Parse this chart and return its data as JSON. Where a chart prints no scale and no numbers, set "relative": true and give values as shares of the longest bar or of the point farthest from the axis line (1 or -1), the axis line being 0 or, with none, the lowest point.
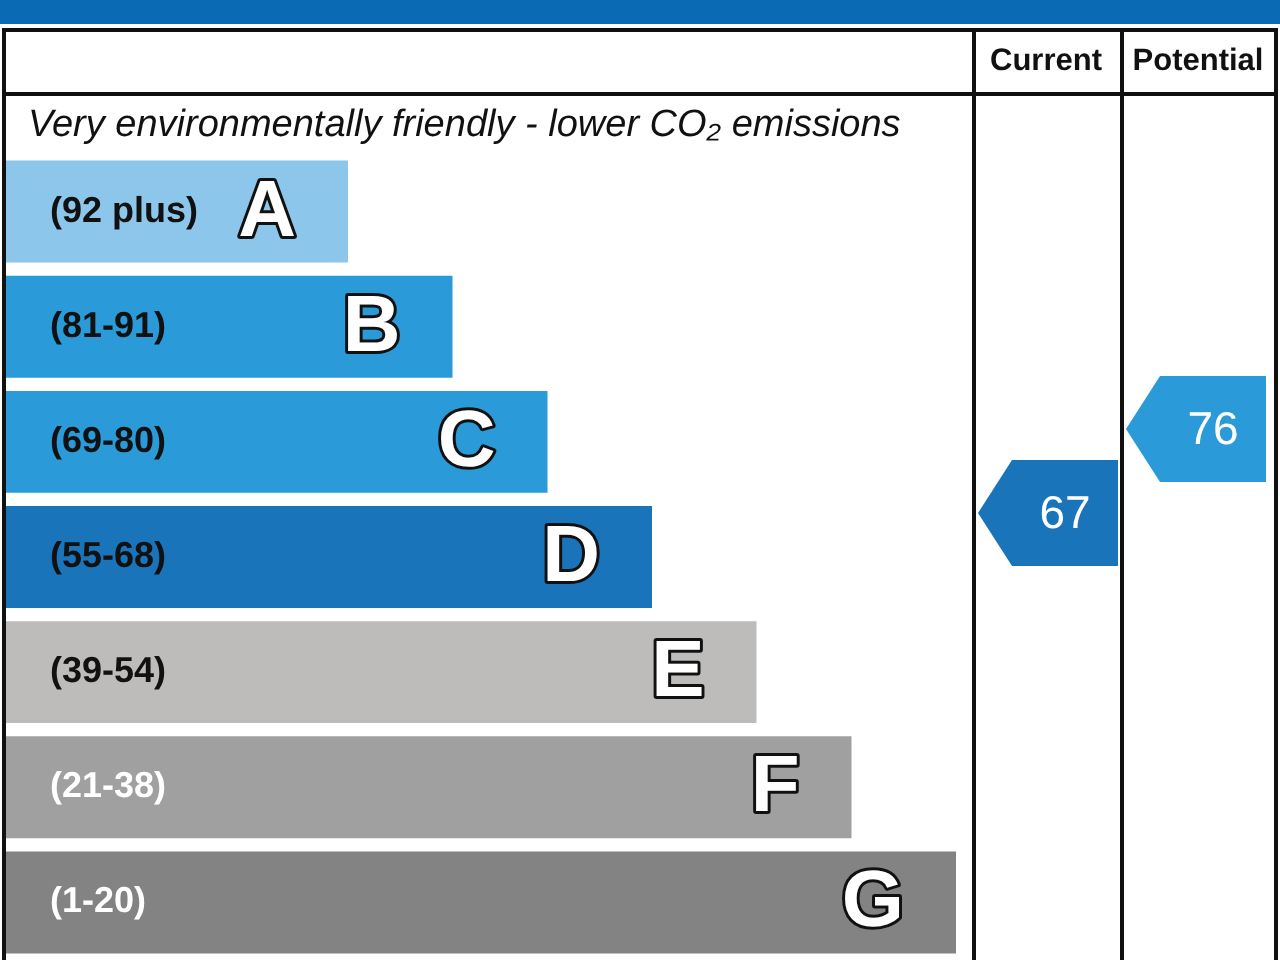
{
  "chart_data": {
    "type": "bar",
    "orientation": "horizontal",
    "relative": true,
    "subtitle": "Very environmentally friendly - lower CO₂ emissions",
    "categories": [
      "A",
      "B",
      "C",
      "D",
      "E",
      "F",
      "G"
    ],
    "values": [
      0.36,
      0.47,
      0.57,
      0.68,
      0.79,
      0.89,
      1
    ],
    "colors": [
      "#8cc6ea",
      "#2a9bd8",
      "#2a9bd8",
      "#1a74ba",
      "#bdbcbb",
      "#a0a0a1",
      "#838383"
    ],
    "annotations": [
      "Current",
      "Potential",
      "67",
      "76",
      "(92 plus)",
      "(81-91)",
      "(69-80)",
      "(55-68)",
      "(39-54)",
      "(21-38)",
      "(1-20)"
    ]
  }
}
